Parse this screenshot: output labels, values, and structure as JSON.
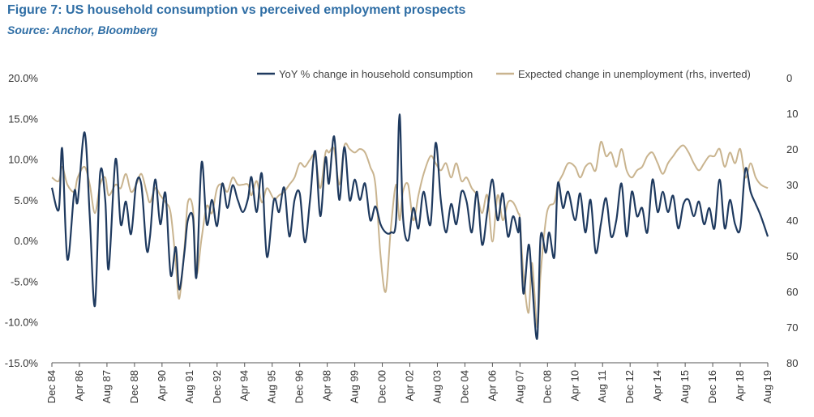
{
  "header": {
    "title": "Figure 7: US household consumption vs perceived employment prospects",
    "source": "Source: Anchor, Bloomberg"
  },
  "colors": {
    "consumption": "#1f3a5f",
    "unemployment": "#c9b48f",
    "axis": "#555555"
  },
  "chart_data": {
    "type": "line",
    "title": "Figure 7: US household consumption vs perceived employment prospects",
    "subtitle": "Source: Anchor, Bloomberg",
    "legend_position": "top-right",
    "grid": false,
    "x_tick_labels": [
      "Dec 84",
      "Apr 86",
      "Aug 87",
      "Dec 88",
      "Apr 90",
      "Aug 91",
      "Dec 92",
      "Apr 94",
      "Aug 95",
      "Dec 96",
      "Apr 98",
      "Aug 99",
      "Dec 00",
      "Apr 02",
      "Aug 03",
      "Dec 04",
      "Apr 06",
      "Aug 07",
      "Dec 08",
      "Apr 10",
      "Aug 11",
      "Dec 12",
      "Apr 14",
      "Aug 15",
      "Dec 16",
      "Apr 18",
      "Aug 19"
    ],
    "x_range": [
      "Dec 84",
      "Aug 19"
    ],
    "y_left": {
      "ticks": [
        "20.0%",
        "15.0%",
        "10.0%",
        "5.0%",
        "0.0%",
        "-5.0%",
        "-10.0%",
        "-15.0%"
      ],
      "range": [
        -15,
        20
      ]
    },
    "y_right": {
      "ticks": [
        "0",
        "10",
        "20",
        "30",
        "40",
        "50",
        "60",
        "70",
        "80"
      ],
      "range": [
        0,
        80
      ],
      "inverted": true
    },
    "series": [
      {
        "name": "YoY % change in household consumption",
        "axis": "left",
        "points": [
          [
            "Dec 84",
            6.5
          ],
          [
            "Apr 85",
            3.8
          ],
          [
            "Jun 85",
            11.3
          ],
          [
            "Sep 85",
            -2.3
          ],
          [
            "Jan 86",
            6.0
          ],
          [
            "Mar 86",
            4.8
          ],
          [
            "Jul 86",
            13.3
          ],
          [
            "Oct 86",
            3.0
          ],
          [
            "Jan 87",
            -8.0
          ],
          [
            "Apr 87",
            8.2
          ],
          [
            "Jul 87",
            5.0
          ],
          [
            "Sep 87",
            -3.5
          ],
          [
            "Jan 88",
            10.0
          ],
          [
            "Apr 88",
            2.0
          ],
          [
            "Jul 88",
            4.8
          ],
          [
            "Oct 88",
            0.8
          ],
          [
            "Jan 89",
            7.0
          ],
          [
            "Apr 89",
            6.8
          ],
          [
            "Jul 89",
            -1.0
          ],
          [
            "Sep 89",
            0.5
          ],
          [
            "Dec 89",
            7.5
          ],
          [
            "Mar 90",
            2.0
          ],
          [
            "Jun 90",
            5.8
          ],
          [
            "Sep 90",
            -4.2
          ],
          [
            "Dec 90",
            -0.8
          ],
          [
            "Feb 91",
            -6.0
          ],
          [
            "May 91",
            -1.5
          ],
          [
            "Jul 91",
            2.5
          ],
          [
            "Oct 91",
            2.8
          ],
          [
            "Dec 91",
            -4.5
          ],
          [
            "Mar 92",
            9.6
          ],
          [
            "Jun 92",
            2.0
          ],
          [
            "Sep 92",
            5.0
          ],
          [
            "Dec 92",
            1.8
          ],
          [
            "Mar 93",
            7.0
          ],
          [
            "Jun 93",
            4.0
          ],
          [
            "Sep 93",
            6.8
          ],
          [
            "Dec 93",
            5.0
          ],
          [
            "Mar 94",
            3.5
          ],
          [
            "Jun 94",
            5.2
          ],
          [
            "Aug 94",
            7.8
          ],
          [
            "Nov 94",
            3.5
          ],
          [
            "Feb 95",
            8.2
          ],
          [
            "May 95",
            -2.0
          ],
          [
            "Sep 95",
            5.0
          ],
          [
            "Dec 95",
            3.5
          ],
          [
            "Mar 96",
            6.5
          ],
          [
            "Jun 96",
            0.5
          ],
          [
            "Sep 96",
            5.0
          ],
          [
            "Dec 96",
            5.8
          ],
          [
            "Mar 97",
            -0.2
          ],
          [
            "Jun 97",
            5.0
          ],
          [
            "Sep 97",
            11.0
          ],
          [
            "Dec 97",
            3.0
          ],
          [
            "Mar 98",
            10.2
          ],
          [
            "May 98",
            7.0
          ],
          [
            "Aug 98",
            12.8
          ],
          [
            "Nov 98",
            5.0
          ],
          [
            "Feb 99",
            11.5
          ],
          [
            "May 99",
            5.0
          ],
          [
            "Aug 99",
            7.5
          ],
          [
            "Nov 99",
            5.0
          ],
          [
            "Feb 00",
            7.0
          ],
          [
            "May 00",
            2.5
          ],
          [
            "Aug 00",
            4.2
          ],
          [
            "Nov 00",
            2.0
          ],
          [
            "Feb 01",
            1.0
          ],
          [
            "May 01",
            1.0
          ],
          [
            "Aug 01",
            2.5
          ],
          [
            "Oct 01",
            15.5
          ],
          [
            "Dec 01",
            3.0
          ],
          [
            "Mar 02",
            0.0
          ],
          [
            "Jun 02",
            4.0
          ],
          [
            "Sep 02",
            1.5
          ],
          [
            "Dec 02",
            6.0
          ],
          [
            "Apr 03",
            2.0
          ],
          [
            "Jul 03",
            12.0
          ],
          [
            "Oct 03",
            5.0
          ],
          [
            "Jan 04",
            1.0
          ],
          [
            "Apr 04",
            4.5
          ],
          [
            "Jul 04",
            2.0
          ],
          [
            "Oct 04",
            6.0
          ],
          [
            "Jan 05",
            4.8
          ],
          [
            "Apr 05",
            1.0
          ],
          [
            "Jul 05",
            6.0
          ],
          [
            "Oct 05",
            -0.5
          ],
          [
            "Jan 06",
            3.5
          ],
          [
            "Apr 06",
            7.5
          ],
          [
            "Jul 06",
            2.5
          ],
          [
            "Oct 06",
            5.8
          ],
          [
            "Jan 07",
            0.5
          ],
          [
            "Apr 07",
            3.0
          ],
          [
            "Jul 07",
            1.0
          ],
          [
            "Aug 07",
            2.5
          ],
          [
            "Oct 07",
            -6.5
          ],
          [
            "Jan 08",
            -0.5
          ],
          [
            "Mar 08",
            -5.0
          ],
          [
            "Jun 08",
            -12.0
          ],
          [
            "Aug 08",
            0.5
          ],
          [
            "Nov 08",
            -1.5
          ],
          [
            "Jan 09",
            1.0
          ],
          [
            "Apr 09",
            -2.0
          ],
          [
            "Jun 09",
            7.0
          ],
          [
            "Sep 09",
            4.0
          ],
          [
            "Dec 09",
            6.0
          ],
          [
            "Apr 10",
            2.5
          ],
          [
            "Jul 10",
            5.8
          ],
          [
            "Oct 10",
            1.0
          ],
          [
            "Jan 11",
            5.0
          ],
          [
            "Apr 11",
            -1.5
          ],
          [
            "Jul 11",
            2.0
          ],
          [
            "Oct 11",
            5.2
          ],
          [
            "Jan 12",
            0.5
          ],
          [
            "Apr 12",
            2.5
          ],
          [
            "Jul 12",
            7.0
          ],
          [
            "Oct 12",
            0.5
          ],
          [
            "Jan 13",
            6.0
          ],
          [
            "Apr 13",
            3.0
          ],
          [
            "Jul 13",
            4.0
          ],
          [
            "Oct 13",
            1.0
          ],
          [
            "Jan 14",
            7.5
          ],
          [
            "Apr 14",
            3.5
          ],
          [
            "Jul 14",
            6.0
          ],
          [
            "Oct 14",
            3.5
          ],
          [
            "Jan 15",
            5.5
          ],
          [
            "Apr 15",
            1.5
          ],
          [
            "Jul 15",
            4.5
          ],
          [
            "Oct 15",
            5.0
          ],
          [
            "Jan 16",
            3.0
          ],
          [
            "Apr 16",
            4.8
          ],
          [
            "Jul 16",
            2.0
          ],
          [
            "Oct 16",
            4.0
          ],
          [
            "Jan 17",
            1.5
          ],
          [
            "Apr 17",
            7.5
          ],
          [
            "Jul 17",
            1.5
          ],
          [
            "Oct 17",
            5.0
          ],
          [
            "Jan 18",
            2.0
          ],
          [
            "Apr 18",
            1.5
          ],
          [
            "Jul 18",
            8.8
          ],
          [
            "Oct 18",
            6.0
          ],
          [
            "Jan 19",
            4.5
          ],
          [
            "Apr 19",
            3.0
          ],
          [
            "Aug 19",
            0.5
          ]
        ]
      },
      {
        "name": "Expected change in unemployment (rhs, inverted)",
        "axis": "right",
        "points": [
          [
            "Dec 84",
            28
          ],
          [
            "Apr 85",
            29
          ],
          [
            "Jun 85",
            25
          ],
          [
            "Sep 85",
            30
          ],
          [
            "Jan 86",
            32
          ],
          [
            "Mar 86",
            28
          ],
          [
            "Jul 86",
            25
          ],
          [
            "Oct 86",
            30
          ],
          [
            "Jan 87",
            38
          ],
          [
            "Apr 87",
            30
          ],
          [
            "Jul 87",
            28
          ],
          [
            "Sep 87",
            33
          ],
          [
            "Jan 88",
            30
          ],
          [
            "Apr 88",
            31
          ],
          [
            "Jul 88",
            27
          ],
          [
            "Oct 88",
            32
          ],
          [
            "Jan 89",
            30
          ],
          [
            "Apr 89",
            27
          ],
          [
            "Jul 89",
            32
          ],
          [
            "Sep 89",
            35
          ],
          [
            "Dec 89",
            31
          ],
          [
            "Mar 90",
            33
          ],
          [
            "Jun 90",
            35
          ],
          [
            "Sep 90",
            38
          ],
          [
            "Dec 90",
            52
          ],
          [
            "Feb 91",
            62
          ],
          [
            "May 91",
            48
          ],
          [
            "Jul 91",
            35
          ],
          [
            "Oct 91",
            37
          ],
          [
            "Dec 91",
            55
          ],
          [
            "Mar 92",
            45
          ],
          [
            "Jun 92",
            36
          ],
          [
            "Sep 92",
            38
          ],
          [
            "Dec 92",
            31
          ],
          [
            "Mar 93",
            30
          ],
          [
            "Jun 93",
            32
          ],
          [
            "Sep 93",
            28
          ],
          [
            "Dec 93",
            30
          ],
          [
            "Mar 94",
            30
          ],
          [
            "Jun 94",
            30
          ],
          [
            "Aug 94",
            33
          ],
          [
            "Nov 94",
            29
          ],
          [
            "Feb 95",
            35
          ],
          [
            "May 95",
            31
          ],
          [
            "Sep 95",
            34
          ],
          [
            "Dec 95",
            33
          ],
          [
            "Mar 96",
            32
          ],
          [
            "Jun 96",
            30
          ],
          [
            "Sep 96",
            28
          ],
          [
            "Dec 96",
            24
          ],
          [
            "Mar 97",
            25
          ],
          [
            "Jun 97",
            23
          ],
          [
            "Sep 97",
            22
          ],
          [
            "Dec 97",
            31
          ],
          [
            "Mar 98",
            21
          ],
          [
            "May 98",
            21
          ],
          [
            "Aug 98",
            20
          ],
          [
            "Nov 98",
            30
          ],
          [
            "Feb 99",
            19
          ],
          [
            "May 99",
            20
          ],
          [
            "Aug 99",
            21
          ],
          [
            "Nov 99",
            20
          ],
          [
            "Feb 00",
            21
          ],
          [
            "May 00",
            25
          ],
          [
            "Aug 00",
            30
          ],
          [
            "Nov 00",
            50
          ],
          [
            "Feb 01",
            60
          ],
          [
            "May 01",
            42
          ],
          [
            "Aug 01",
            30
          ],
          [
            "Oct 01",
            40
          ],
          [
            "Dec 01",
            32
          ],
          [
            "Mar 02",
            30
          ],
          [
            "Jun 02",
            40
          ],
          [
            "Sep 02",
            33
          ],
          [
            "Dec 02",
            27
          ],
          [
            "Apr 03",
            22
          ],
          [
            "Jul 03",
            24
          ],
          [
            "Oct 03",
            26
          ],
          [
            "Jan 04",
            24
          ],
          [
            "Apr 04",
            28
          ],
          [
            "Jul 04",
            24
          ],
          [
            "Oct 04",
            29
          ],
          [
            "Jan 05",
            28
          ],
          [
            "Apr 05",
            31
          ],
          [
            "Jul 05",
            33
          ],
          [
            "Oct 05",
            38
          ],
          [
            "Jan 06",
            33
          ],
          [
            "Apr 06",
            46
          ],
          [
            "Jul 06",
            33
          ],
          [
            "Oct 06",
            40
          ],
          [
            "Jan 07",
            35
          ],
          [
            "Apr 07",
            35
          ],
          [
            "Jul 07",
            38
          ],
          [
            "Aug 07",
            40
          ],
          [
            "Oct 07",
            55
          ],
          [
            "Jan 08",
            66
          ],
          [
            "Mar 08",
            52
          ],
          [
            "Jun 08",
            70
          ],
          [
            "Aug 08",
            55
          ],
          [
            "Nov 08",
            40
          ],
          [
            "Jan 09",
            36
          ],
          [
            "Apr 09",
            35
          ],
          [
            "Jun 09",
            30
          ],
          [
            "Sep 09",
            27
          ],
          [
            "Dec 09",
            24
          ],
          [
            "Apr 10",
            25
          ],
          [
            "Jul 10",
            28
          ],
          [
            "Oct 10",
            25
          ],
          [
            "Jan 11",
            24
          ],
          [
            "Apr 11",
            26
          ],
          [
            "Jul 11",
            18
          ],
          [
            "Oct 11",
            22
          ],
          [
            "Jan 12",
            21
          ],
          [
            "Apr 12",
            25
          ],
          [
            "Jul 12",
            20
          ],
          [
            "Oct 12",
            26
          ],
          [
            "Jan 13",
            28
          ],
          [
            "Apr 13",
            26
          ],
          [
            "Jul 13",
            25
          ],
          [
            "Oct 13",
            22
          ],
          [
            "Jan 14",
            21
          ],
          [
            "Apr 14",
            24
          ],
          [
            "Jul 14",
            27
          ],
          [
            "Oct 14",
            24
          ],
          [
            "Jan 15",
            22
          ],
          [
            "Apr 15",
            20
          ],
          [
            "Jul 15",
            19
          ],
          [
            "Oct 15",
            21
          ],
          [
            "Jan 16",
            24
          ],
          [
            "Apr 16",
            26
          ],
          [
            "Jul 16",
            24
          ],
          [
            "Oct 16",
            22
          ],
          [
            "Jan 17",
            22
          ],
          [
            "Apr 17",
            20
          ],
          [
            "Jul 17",
            25
          ],
          [
            "Oct 17",
            21
          ],
          [
            "Jan 18",
            24
          ],
          [
            "Apr 18",
            20
          ],
          [
            "Jul 18",
            28
          ],
          [
            "Oct 18",
            24
          ],
          [
            "Jan 19",
            28
          ],
          [
            "Apr 19",
            30
          ],
          [
            "Aug 19",
            31
          ]
        ]
      }
    ]
  }
}
